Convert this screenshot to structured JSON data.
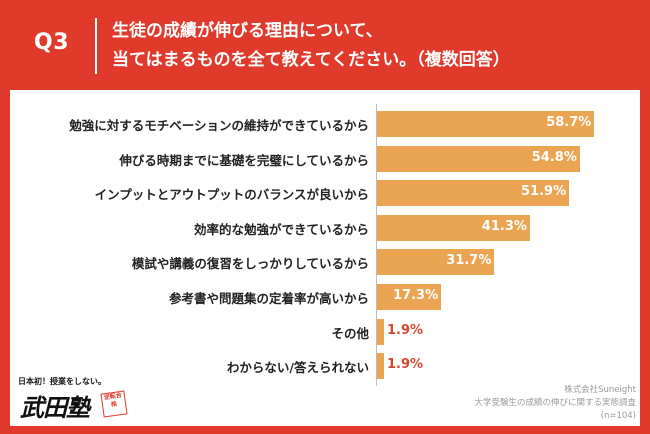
{
  "header": {
    "question_number": "Q3",
    "title_line1": "生徒の成績が伸びる理由について、",
    "title_line2": "当てはまるものを全て教えてください。（複数回答）"
  },
  "chart_data": {
    "type": "bar",
    "orientation": "horizontal",
    "categories": [
      "勉強に対するモチベーションの維持ができているから",
      "伸びる時期までに基礎を完璧にしているから",
      "インプットとアウトプットのバランスが良いから",
      "効率的な勉強ができているから",
      "模試や講義の復習をしっかりしているから",
      "参考書や問題集の定着率が高いから",
      "その他",
      "わからない/答えられない"
    ],
    "values": [
      58.7,
      54.8,
      51.9,
      41.3,
      31.7,
      17.3,
      1.9,
      1.9
    ],
    "value_labels": [
      "58.7%",
      "54.8%",
      "51.9%",
      "41.3%",
      "31.7%",
      "17.3%",
      "1.9%",
      "1.9%"
    ],
    "xlim": [
      0,
      60
    ],
    "grid": false,
    "legend": "none",
    "bar_color": "#eaa452",
    "label_color_inside": "#ffffff",
    "label_color_outside": "#d2492f"
  },
  "logo": {
    "tagline": "日本初！授業をしない。",
    "name": "武田塾",
    "stamp_text": "逆転合格"
  },
  "source": {
    "company": "株式会社Suneight",
    "survey": "大学受験生の成績の伸びに関する実態調査",
    "sample": "(n=104)"
  },
  "colors": {
    "frame": "#e03a2c",
    "panel": "#ffffff",
    "text": "#222222",
    "source_text": "#999999"
  }
}
